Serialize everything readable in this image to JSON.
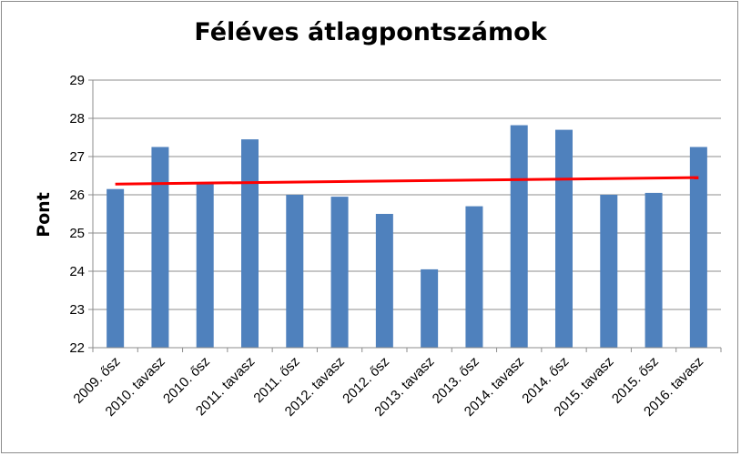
{
  "chart_data": {
    "type": "bar",
    "title": "Féléves átlagpontszámok",
    "xlabel": "",
    "ylabel": "Pont",
    "ylim": [
      22,
      29
    ],
    "yticks": [
      22,
      23,
      24,
      25,
      26,
      27,
      28,
      29
    ],
    "grid": true,
    "legend": "none",
    "categories": [
      "2009. ősz",
      "2010. tavasz",
      "2010. ősz",
      "2011. tavasz",
      "2011. ősz",
      "2012. tavasz",
      "2012. ősz",
      "2013. tavasz",
      "2013. ősz",
      "2014. tavasz",
      "2014. ősz",
      "2015. tavasz",
      "2015. ősz",
      "2016. tavasz"
    ],
    "series": [
      {
        "values": [
          26.15,
          27.25,
          26.3,
          27.45,
          26.0,
          25.95,
          25.5,
          24.05,
          25.7,
          27.82,
          27.7,
          26.0,
          26.05,
          27.25
        ],
        "color": "#4f81bd"
      }
    ],
    "trendline": {
      "type": "linear",
      "color": "#ff0000",
      "start": 26.28,
      "end": 26.45
    }
  }
}
